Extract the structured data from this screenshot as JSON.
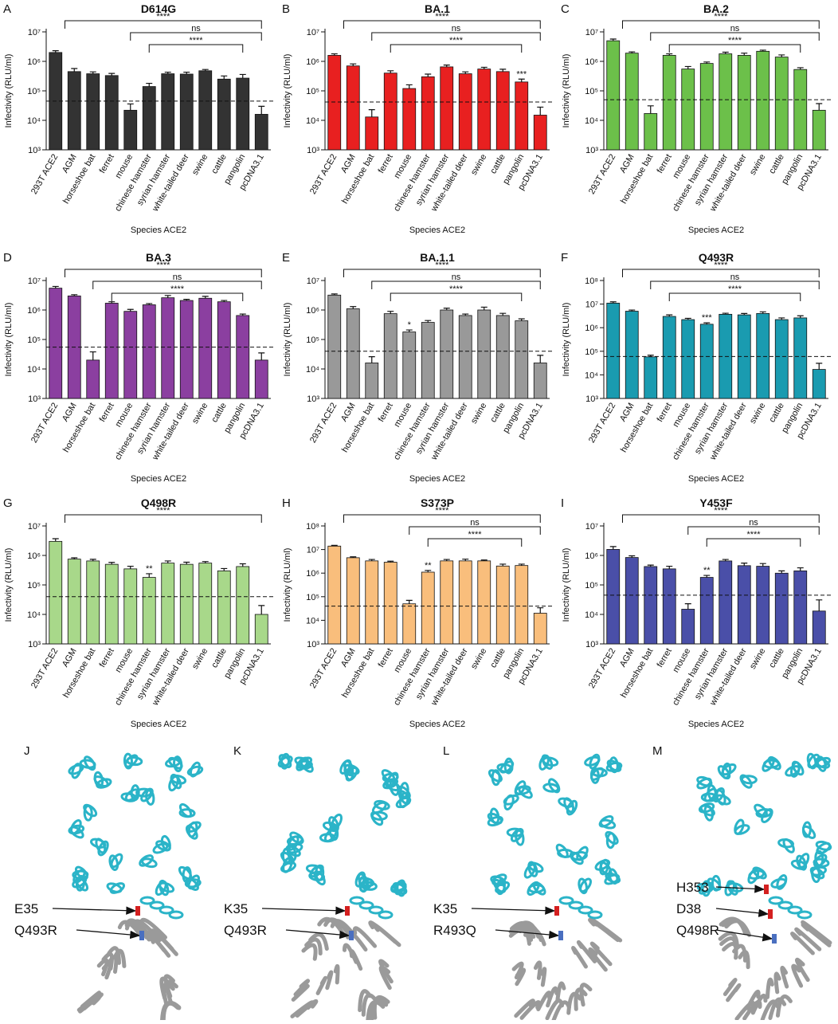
{
  "chart_data": [
    {
      "type": "bar",
      "panel": "A",
      "title": "D614G",
      "y_label": "Infectivity (RLU/ml)",
      "x_label": "Species ACE2",
      "log_scale": true,
      "color": "#333333",
      "categories": [
        "293T ACE2",
        "AGM",
        "horseshoe bat",
        "ferret",
        "mouse",
        "chinese hamster",
        "syrian hamster",
        "white-tailed deer",
        "swine",
        "cattle",
        "pangolin",
        "pcDNA3.1"
      ],
      "values": [
        2000000,
        450000,
        380000,
        330000,
        22000,
        140000,
        380000,
        370000,
        480000,
        250000,
        270000,
        16000
      ],
      "errors": [
        300000,
        120000,
        60000,
        60000,
        14000,
        40000,
        50000,
        60000,
        50000,
        70000,
        90000,
        14000
      ],
      "threshold": 45000,
      "ylim": [
        1000,
        10000000
      ],
      "yticks": [
        {
          "value": 1000,
          "label": "10³"
        },
        {
          "value": 10000,
          "label": "10⁴"
        },
        {
          "value": 100000,
          "label": "10⁵"
        },
        {
          "value": 1000000,
          "label": "10⁶"
        },
        {
          "value": 10000000,
          "label": "10⁷"
        }
      ],
      "annotations": [
        {
          "text": "****",
          "span": [
            0,
            11
          ]
        },
        {
          "text": "ns",
          "span": [
            4,
            11
          ]
        },
        {
          "text": "****",
          "span": [
            5,
            10
          ]
        }
      ]
    },
    {
      "type": "bar",
      "panel": "B",
      "title": "BA.1",
      "y_label": "Infectivity (RLU/ml)",
      "x_label": "Species ACE2",
      "log_scale": true,
      "color": "#e82020",
      "categories": [
        "293T ACE2",
        "AGM",
        "horseshoe bat",
        "ferret",
        "mouse",
        "chinese hamster",
        "syrian hamster",
        "white-tailed deer",
        "swine",
        "cattle",
        "pangolin",
        "pcDNA3.1"
      ],
      "values": [
        1600000,
        700000,
        13000,
        400000,
        120000,
        300000,
        650000,
        380000,
        550000,
        450000,
        200000,
        15000
      ],
      "errors": [
        200000,
        120000,
        10000,
        80000,
        40000,
        70000,
        100000,
        60000,
        80000,
        90000,
        50000,
        13000
      ],
      "threshold": 42000,
      "ylim": [
        1000,
        10000000
      ],
      "yticks": [
        {
          "value": 1000,
          "label": "10³"
        },
        {
          "value": 10000,
          "label": "10⁴"
        },
        {
          "value": 100000,
          "label": "10⁵"
        },
        {
          "value": 1000000,
          "label": "10⁶"
        },
        {
          "value": 10000000,
          "label": "10⁷"
        }
      ],
      "annotations": [
        {
          "text": "****",
          "span": [
            0,
            11
          ]
        },
        {
          "text": "ns",
          "span": [
            2,
            11
          ]
        },
        {
          "text": "****",
          "span": [
            3,
            10
          ]
        },
        {
          "text": "***",
          "span": [
            10,
            10
          ]
        }
      ]
    },
    {
      "type": "bar",
      "panel": "C",
      "title": "BA.2",
      "y_label": "Infectivity (RLU/ml)",
      "x_label": "Species ACE2",
      "log_scale": true,
      "color": "#6cc04a",
      "categories": [
        "293T ACE2",
        "AGM",
        "horseshoe bat",
        "ferret",
        "mouse",
        "chinese hamster",
        "syrian hamster",
        "white-tailed deer",
        "swine",
        "cattle",
        "pangolin",
        "pcDNA3.1"
      ],
      "values": [
        5000000,
        1900000,
        17000,
        1600000,
        550000,
        850000,
        1800000,
        1600000,
        2200000,
        1400000,
        530000,
        22000
      ],
      "errors": [
        700000,
        200000,
        14000,
        200000,
        120000,
        100000,
        250000,
        300000,
        200000,
        250000,
        80000,
        15000
      ],
      "threshold": 50000,
      "ylim": [
        1000,
        10000000
      ],
      "yticks": [
        {
          "value": 1000,
          "label": "10³"
        },
        {
          "value": 10000,
          "label": "10⁴"
        },
        {
          "value": 100000,
          "label": "10⁵"
        },
        {
          "value": 1000000,
          "label": "10⁶"
        },
        {
          "value": 10000000,
          "label": "10⁷"
        }
      ],
      "annotations": [
        {
          "text": "****",
          "span": [
            0,
            11
          ]
        },
        {
          "text": "ns",
          "span": [
            2,
            11
          ]
        },
        {
          "text": "****",
          "span": [
            3,
            10
          ]
        }
      ]
    },
    {
      "type": "bar",
      "panel": "D",
      "title": "BA.3",
      "y_label": "Infectivity (RLU/ml)",
      "x_label": "Species ACE2",
      "log_scale": true,
      "color": "#8b3fa0",
      "categories": [
        "293T ACE2",
        "AGM",
        "horseshoe bat",
        "ferret",
        "mouse",
        "chinese hamster",
        "syrian hamster",
        "white-tailed deer",
        "swine",
        "cattle",
        "pangolin",
        "pcDNA3.1"
      ],
      "values": [
        5500000,
        3000000,
        20000,
        1700000,
        900000,
        1500000,
        2600000,
        2100000,
        2500000,
        1900000,
        650000,
        20000
      ],
      "errors": [
        800000,
        300000,
        18000,
        200000,
        150000,
        150000,
        500000,
        200000,
        400000,
        200000,
        80000,
        15000
      ],
      "threshold": 55000,
      "ylim": [
        1000,
        10000000
      ],
      "yticks": [
        {
          "value": 1000,
          "label": "10³"
        },
        {
          "value": 10000,
          "label": "10⁴"
        },
        {
          "value": 100000,
          "label": "10⁵"
        },
        {
          "value": 1000000,
          "label": "10⁶"
        },
        {
          "value": 10000000,
          "label": "10⁷"
        }
      ],
      "annotations": [
        {
          "text": "****",
          "span": [
            0,
            11
          ]
        },
        {
          "text": "ns",
          "span": [
            2,
            11
          ]
        },
        {
          "text": "****",
          "span": [
            3,
            10
          ]
        }
      ]
    },
    {
      "type": "bar",
      "panel": "E",
      "title": "BA.1.1",
      "y_label": "Infectivity (RLU/ml)",
      "x_label": "Species ACE2",
      "log_scale": true,
      "color": "#999999",
      "categories": [
        "293T ACE2",
        "AGM",
        "horseshoe bat",
        "ferret",
        "mouse",
        "chinese hamster",
        "syrian hamster",
        "white-tailed deer",
        "swine",
        "cattle",
        "pangolin",
        "pcDNA3.1"
      ],
      "values": [
        3200000,
        1100000,
        16000,
        750000,
        180000,
        380000,
        1000000,
        650000,
        1000000,
        650000,
        430000,
        16000
      ],
      "errors": [
        300000,
        200000,
        10000,
        150000,
        30000,
        60000,
        150000,
        80000,
        250000,
        120000,
        70000,
        13000
      ],
      "threshold": 40000,
      "ylim": [
        1000,
        10000000
      ],
      "yticks": [
        {
          "value": 1000,
          "label": "10³"
        },
        {
          "value": 10000,
          "label": "10⁴"
        },
        {
          "value": 100000,
          "label": "10⁵"
        },
        {
          "value": 1000000,
          "label": "10⁶"
        },
        {
          "value": 10000000,
          "label": "10⁷"
        }
      ],
      "annotations": [
        {
          "text": "****",
          "span": [
            0,
            11
          ]
        },
        {
          "text": "ns",
          "span": [
            2,
            11
          ]
        },
        {
          "text": "****",
          "span": [
            3,
            10
          ]
        },
        {
          "text": "*",
          "span": [
            4,
            4
          ]
        }
      ]
    },
    {
      "type": "bar",
      "panel": "F",
      "title": "Q493R",
      "y_label": "Infectivity (RLU/ml)",
      "x_label": "Species ACE2",
      "log_scale": true,
      "color": "#1a9bb0",
      "categories": [
        "293T ACE2",
        "AGM",
        "horseshoe bat",
        "ferret",
        "mouse",
        "chinese hamster",
        "syrian hamster",
        "white-tailed deer",
        "swine",
        "cattle",
        "pangolin",
        "pcDNA3.1"
      ],
      "values": [
        11000000,
        5000000,
        58000,
        3000000,
        2200000,
        1400000,
        3700000,
        3500000,
        4000000,
        2200000,
        2600000,
        17000
      ],
      "errors": [
        1500000,
        600000,
        10000,
        500000,
        300000,
        200000,
        400000,
        500000,
        700000,
        400000,
        600000,
        14000
      ],
      "threshold": 60000,
      "ylim": [
        1000,
        100000000
      ],
      "yticks": [
        {
          "value": 1000,
          "label": "10³"
        },
        {
          "value": 10000,
          "label": "10⁴"
        },
        {
          "value": 100000,
          "label": "10⁵"
        },
        {
          "value": 1000000,
          "label": "10⁶"
        },
        {
          "value": 10000000,
          "label": "10⁷"
        },
        {
          "value": 100000000,
          "label": "10⁸"
        }
      ],
      "annotations": [
        {
          "text": "****",
          "span": [
            0,
            11
          ]
        },
        {
          "text": "ns",
          "span": [
            2,
            11
          ]
        },
        {
          "text": "****",
          "span": [
            3,
            10
          ]
        },
        {
          "text": "***",
          "span": [
            5,
            5
          ]
        }
      ]
    },
    {
      "type": "bar",
      "panel": "G",
      "title": "Q498R",
      "y_label": "Infectivity (RLU/ml)",
      "x_label": "Species ACE2",
      "log_scale": true,
      "color": "#a8d88a",
      "categories": [
        "293T ACE2",
        "AGM",
        "horseshoe bat",
        "ferret",
        "mouse",
        "chinese hamster",
        "syrian hamster",
        "white-tailed deer",
        "swine",
        "cattle",
        "pangolin",
        "pcDNA3.1"
      ],
      "values": [
        3000000,
        750000,
        650000,
        500000,
        350000,
        180000,
        550000,
        500000,
        550000,
        300000,
        420000,
        10000
      ],
      "errors": [
        700000,
        80000,
        90000,
        80000,
        80000,
        60000,
        100000,
        90000,
        70000,
        60000,
        100000,
        10000
      ],
      "threshold": 40000,
      "ylim": [
        1000,
        10000000
      ],
      "yticks": [
        {
          "value": 1000,
          "label": "10³"
        },
        {
          "value": 10000,
          "label": "10⁴"
        },
        {
          "value": 100000,
          "label": "10⁵"
        },
        {
          "value": 1000000,
          "label": "10⁶"
        },
        {
          "value": 10000000,
          "label": "10⁷"
        }
      ],
      "annotations": [
        {
          "text": "****",
          "span": [
            0,
            11
          ]
        },
        {
          "text": "**",
          "span": [
            5,
            5
          ]
        }
      ]
    },
    {
      "type": "bar",
      "panel": "H",
      "title": "S373P",
      "y_label": "Infectivity (RLU/ml)",
      "x_label": "Species ACE2",
      "log_scale": true,
      "color": "#f9be7c",
      "categories": [
        "293T ACE2",
        "AGM",
        "horseshoe bat",
        "ferret",
        "mouse",
        "chinese hamster",
        "syrian hamster",
        "white-tailed deer",
        "swine",
        "cattle",
        "pangolin",
        "pcDNA3.1"
      ],
      "values": [
        14000000,
        4500000,
        3300000,
        2900000,
        50000,
        1100000,
        3300000,
        3300000,
        3300000,
        2000000,
        2100000,
        20000
      ],
      "errors": [
        1000000,
        400000,
        500000,
        300000,
        20000,
        200000,
        500000,
        600000,
        300000,
        400000,
        300000,
        14000
      ],
      "threshold": 40000,
      "ylim": [
        1000,
        100000000
      ],
      "yticks": [
        {
          "value": 1000,
          "label": "10³"
        },
        {
          "value": 10000,
          "label": "10⁴"
        },
        {
          "value": 100000,
          "label": "10⁵"
        },
        {
          "value": 1000000,
          "label": "10⁶"
        },
        {
          "value": 10000000,
          "label": "10⁷"
        },
        {
          "value": 100000000,
          "label": "10⁸"
        }
      ],
      "annotations": [
        {
          "text": "****",
          "span": [
            0,
            11
          ]
        },
        {
          "text": "ns",
          "span": [
            4,
            11
          ]
        },
        {
          "text": "****",
          "span": [
            5,
            10
          ]
        },
        {
          "text": "**",
          "span": [
            5,
            5
          ]
        }
      ]
    },
    {
      "type": "bar",
      "panel": "I",
      "title": "Y453F",
      "y_label": "Infectivity (RLU/ml)",
      "x_label": "Species ACE2",
      "log_scale": true,
      "color": "#4a4fa8",
      "categories": [
        "293T ACE2",
        "AGM",
        "horseshoe bat",
        "ferret",
        "mouse",
        "chinese hamster",
        "syrian hamster",
        "white-tailed deer",
        "swine",
        "cattle",
        "pangolin",
        "pcDNA3.1"
      ],
      "values": [
        1600000,
        850000,
        420000,
        350000,
        15000,
        180000,
        650000,
        450000,
        430000,
        250000,
        300000,
        13000
      ],
      "errors": [
        400000,
        120000,
        50000,
        80000,
        8000,
        30000,
        80000,
        100000,
        100000,
        50000,
        80000,
        18000
      ],
      "threshold": 45000,
      "ylim": [
        1000,
        10000000
      ],
      "yticks": [
        {
          "value": 1000,
          "label": "10³"
        },
        {
          "value": 10000,
          "label": "10⁴"
        },
        {
          "value": 100000,
          "label": "10⁵"
        },
        {
          "value": 1000000,
          "label": "10⁶"
        },
        {
          "value": 10000000,
          "label": "10⁷"
        }
      ],
      "annotations": [
        {
          "text": "****",
          "span": [
            0,
            11
          ]
        },
        {
          "text": "ns",
          "span": [
            4,
            11
          ]
        },
        {
          "text": "****",
          "span": [
            5,
            10
          ]
        },
        {
          "text": "**",
          "span": [
            5,
            5
          ]
        }
      ]
    }
  ],
  "structures": [
    {
      "panel": "J",
      "labels": [
        "E35",
        "Q493R"
      ]
    },
    {
      "panel": "K",
      "labels": [
        "K35",
        "Q493R"
      ]
    },
    {
      "panel": "L",
      "labels": [
        "K35",
        "R493Q"
      ]
    },
    {
      "panel": "M",
      "labels": [
        "H353",
        "D38",
        "Q498R"
      ]
    }
  ]
}
